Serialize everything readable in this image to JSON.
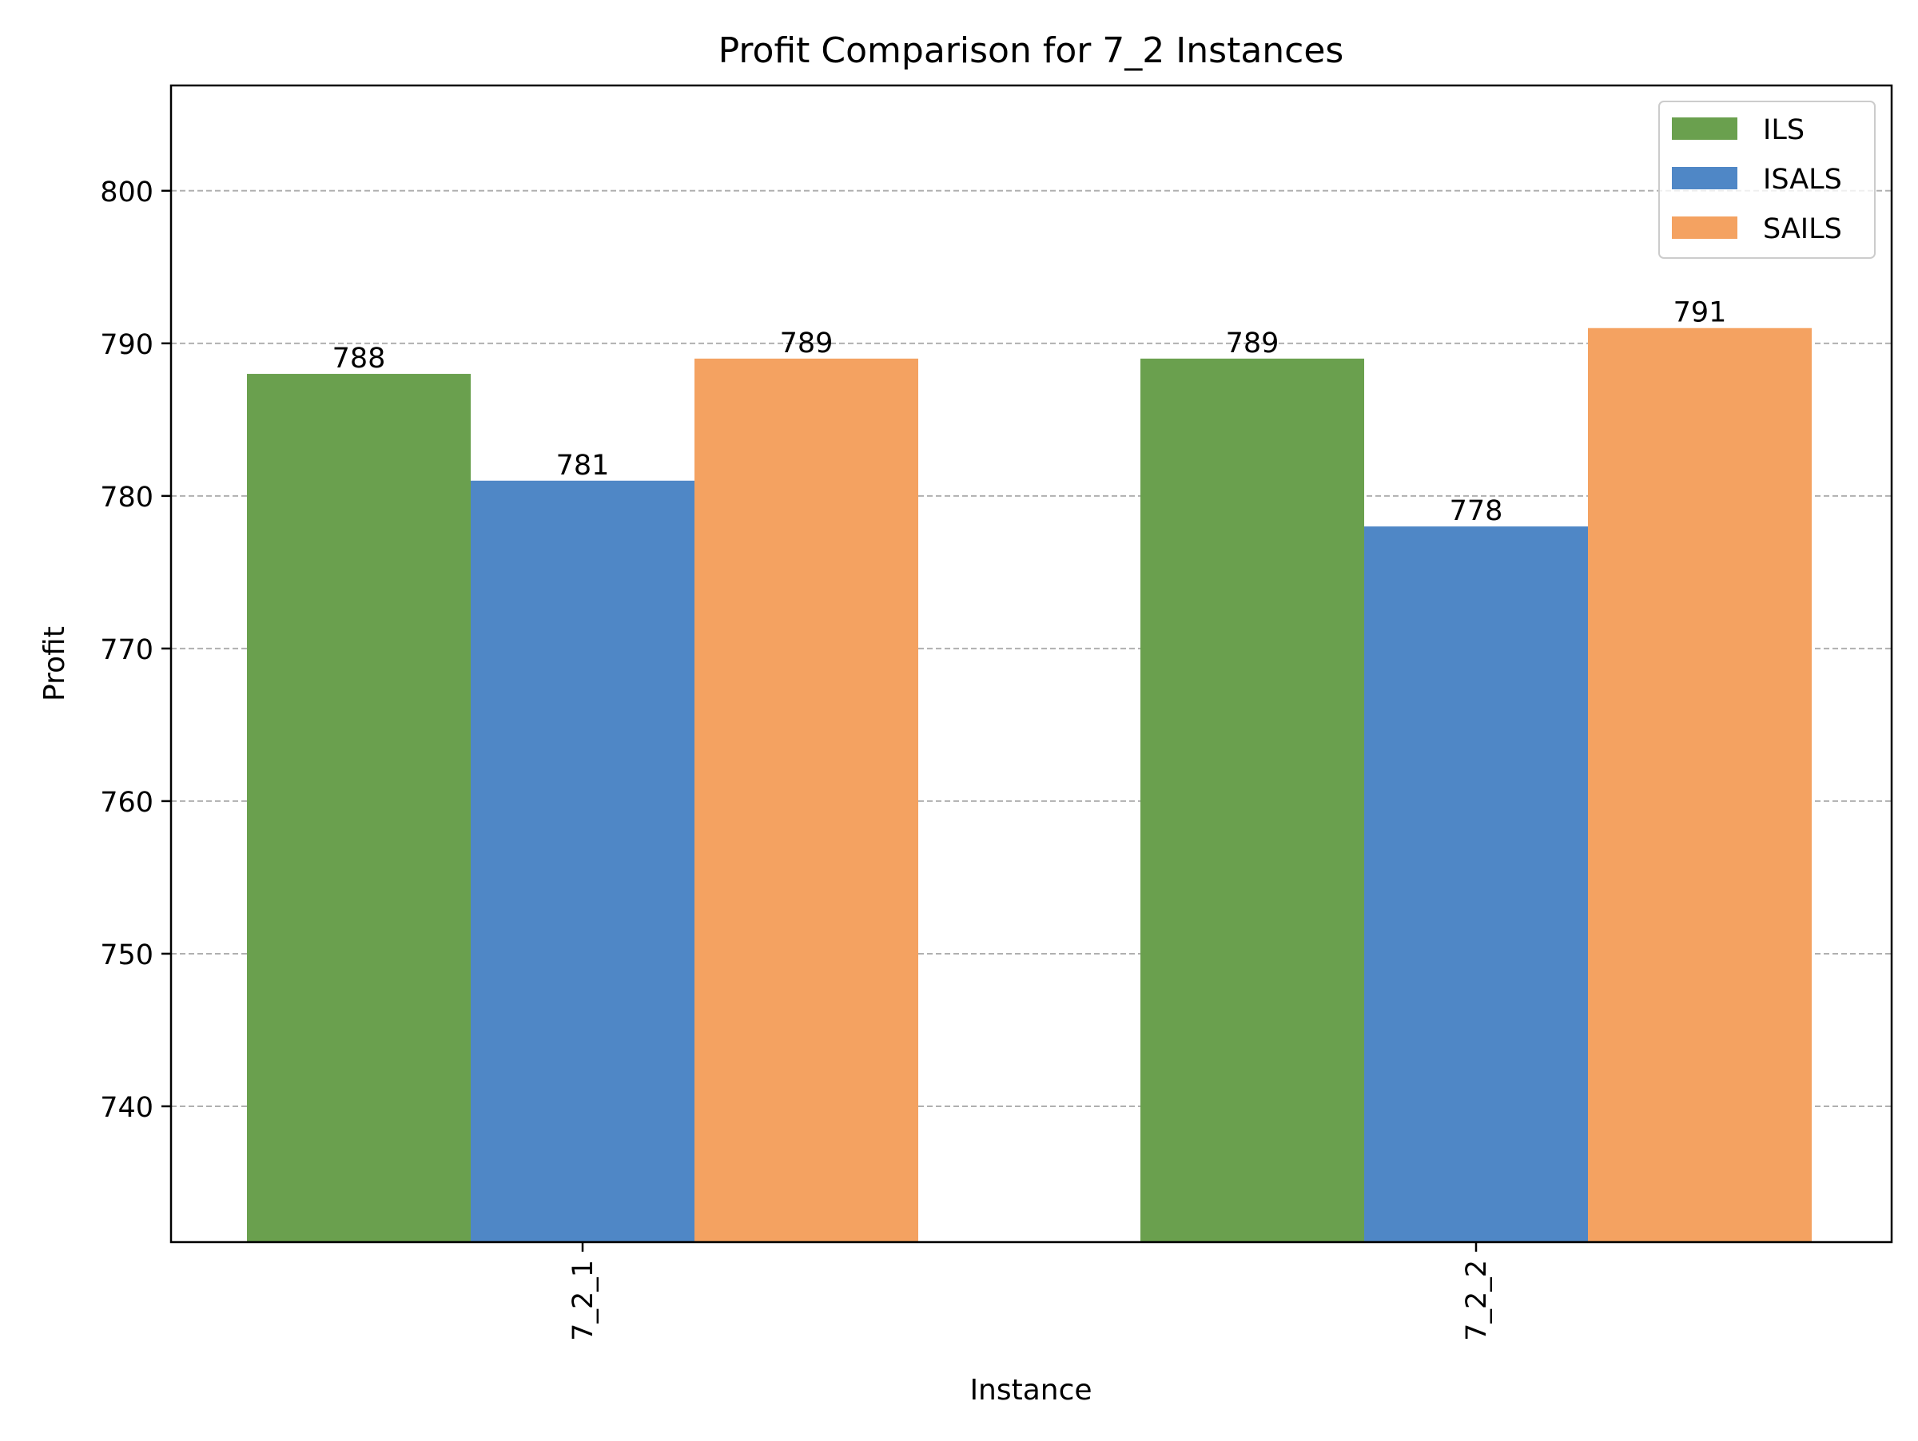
{
  "chart_data": {
    "type": "bar",
    "title": "Profit Comparison for 7_2 Instances",
    "xlabel": "Instance",
    "ylabel": "Profit",
    "categories": [
      "7_2_1",
      "7_2_2"
    ],
    "series": [
      {
        "name": "ILS",
        "values": [
          788,
          789
        ],
        "color": "#6aa04e"
      },
      {
        "name": "ISALS",
        "values": [
          781,
          778
        ],
        "color": "#4f87c6"
      },
      {
        "name": "SAILS",
        "values": [
          789,
          791
        ],
        "color": "#f4a261"
      }
    ],
    "ylim": [
      731.1,
      806.9
    ],
    "yticks": [
      740,
      750,
      760,
      770,
      780,
      790,
      800
    ],
    "grid": {
      "axis": "y",
      "style": "dashed"
    },
    "legend": "top-right",
    "data_labels": true,
    "xtick_rotation": 90
  }
}
